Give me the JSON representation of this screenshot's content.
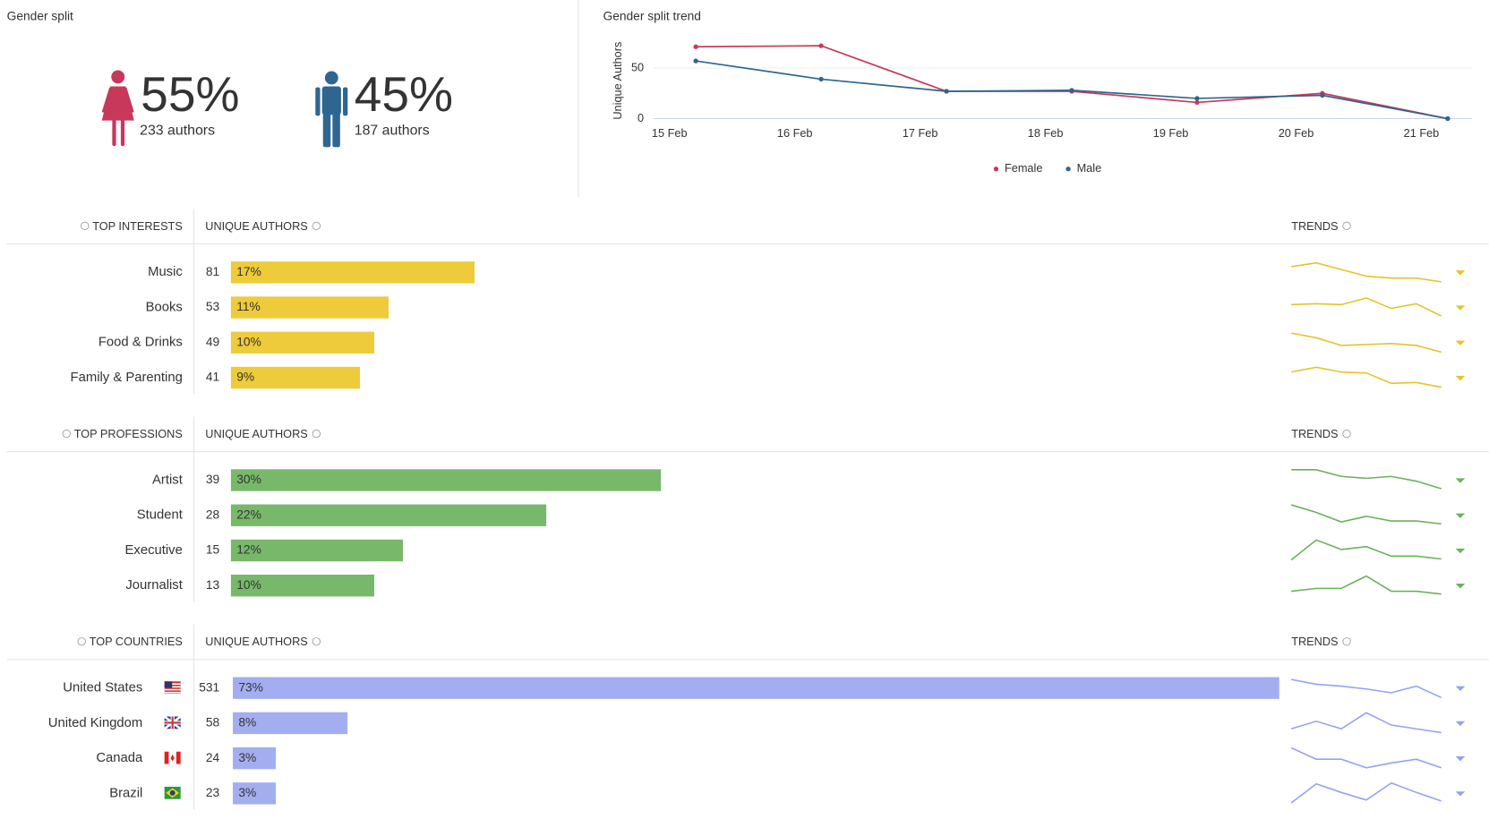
{
  "gender_split": {
    "title": "Gender split",
    "female": {
      "percent": "55%",
      "authors": "233 authors",
      "color": "#c8385a"
    },
    "male": {
      "percent": "45%",
      "authors": "187 authors",
      "color": "#2f6690"
    }
  },
  "chart_data": {
    "type": "line",
    "title": "Gender split trend",
    "y_label": "Unique Authors",
    "categories": [
      "15 Feb",
      "16 Feb",
      "17 Feb",
      "18 Feb",
      "19 Feb",
      "20 Feb",
      "21 Feb"
    ],
    "series": [
      {
        "name": "Female",
        "color": "#c8385a",
        "values": [
          71,
          72,
          27,
          27,
          16,
          25,
          0
        ]
      },
      {
        "name": "Male",
        "color": "#2f6690",
        "values": [
          57,
          39,
          27,
          28,
          20,
          23,
          0
        ]
      }
    ],
    "ylim": [
      0,
      75
    ],
    "yticks": [
      0,
      50
    ],
    "grid": true,
    "legend": "bottom"
  },
  "sections": [
    {
      "title": "TOP INTERESTS",
      "column": "UNIQUE AUTHORS",
      "trends_title": "TRENDS",
      "color": "#eecb3a",
      "trend_color": "#e8c229",
      "rows": [
        {
          "name": "Music",
          "count": 81,
          "share": 17,
          "share_label": "17%",
          "trend": [
            18,
            22,
            15,
            8,
            6,
            6,
            2
          ]
        },
        {
          "name": "Books",
          "count": 53,
          "share": 11,
          "share_label": "11%",
          "trend": [
            15,
            16,
            15,
            22,
            11,
            16,
            3
          ]
        },
        {
          "name": "Food & Drinks",
          "count": 49,
          "share": 10,
          "share_label": "10%",
          "trend": [
            22,
            17,
            9,
            10,
            11,
            9,
            2
          ]
        },
        {
          "name": "Family & Parenting",
          "count": 41,
          "share": 9,
          "share_label": "9%",
          "trend": [
            18,
            23,
            18,
            17,
            6,
            7,
            2
          ]
        }
      ]
    },
    {
      "title": "TOP PROFESSIONS",
      "column": "UNIQUE AUTHORS",
      "trends_title": "TRENDS",
      "color": "#78b86a",
      "trend_color": "#6ab25b",
      "rows": [
        {
          "name": "Artist",
          "count": 39,
          "share": 30,
          "share_label": "30%",
          "trend": [
            23,
            23,
            16,
            14,
            16,
            11,
            3
          ]
        },
        {
          "name": "Student",
          "count": 28,
          "share": 22,
          "share_label": "22%",
          "trend": [
            23,
            15,
            5,
            11,
            6,
            6,
            3
          ]
        },
        {
          "name": "Executive",
          "count": 15,
          "share": 12,
          "share_label": "12%",
          "trend": [
            2,
            23,
            13,
            16,
            6,
            6,
            3
          ]
        },
        {
          "name": "Journalist",
          "count": 13,
          "share": 10,
          "share_label": "10%",
          "trend": [
            6,
            9,
            9,
            22,
            6,
            6,
            3
          ]
        }
      ]
    },
    {
      "title": "TOP COUNTRIES",
      "column": "UNIQUE AUTHORS",
      "trends_title": "TRENDS",
      "color": "#a3aef0",
      "trend_color": "#95a2ee",
      "rows": [
        {
          "name": "United States",
          "count": 531,
          "share": 73,
          "share_label": "73%",
          "trend": [
            21,
            16,
            14,
            11,
            7,
            14,
            2
          ]
        },
        {
          "name": "United Kingdom",
          "count": 58,
          "share": 8,
          "share_label": "8%",
          "trend": [
            6,
            14,
            6,
            23,
            10,
            6,
            2
          ]
        },
        {
          "name": "Canada",
          "count": 24,
          "share": 3,
          "share_label": "3%",
          "trend": [
            23,
            11,
            11,
            2,
            7,
            11,
            2
          ]
        },
        {
          "name": "Brazil",
          "count": 23,
          "share": 3,
          "share_label": "3%",
          "trend": [
            2,
            22,
            13,
            5,
            23,
            13,
            4
          ]
        }
      ]
    }
  ]
}
